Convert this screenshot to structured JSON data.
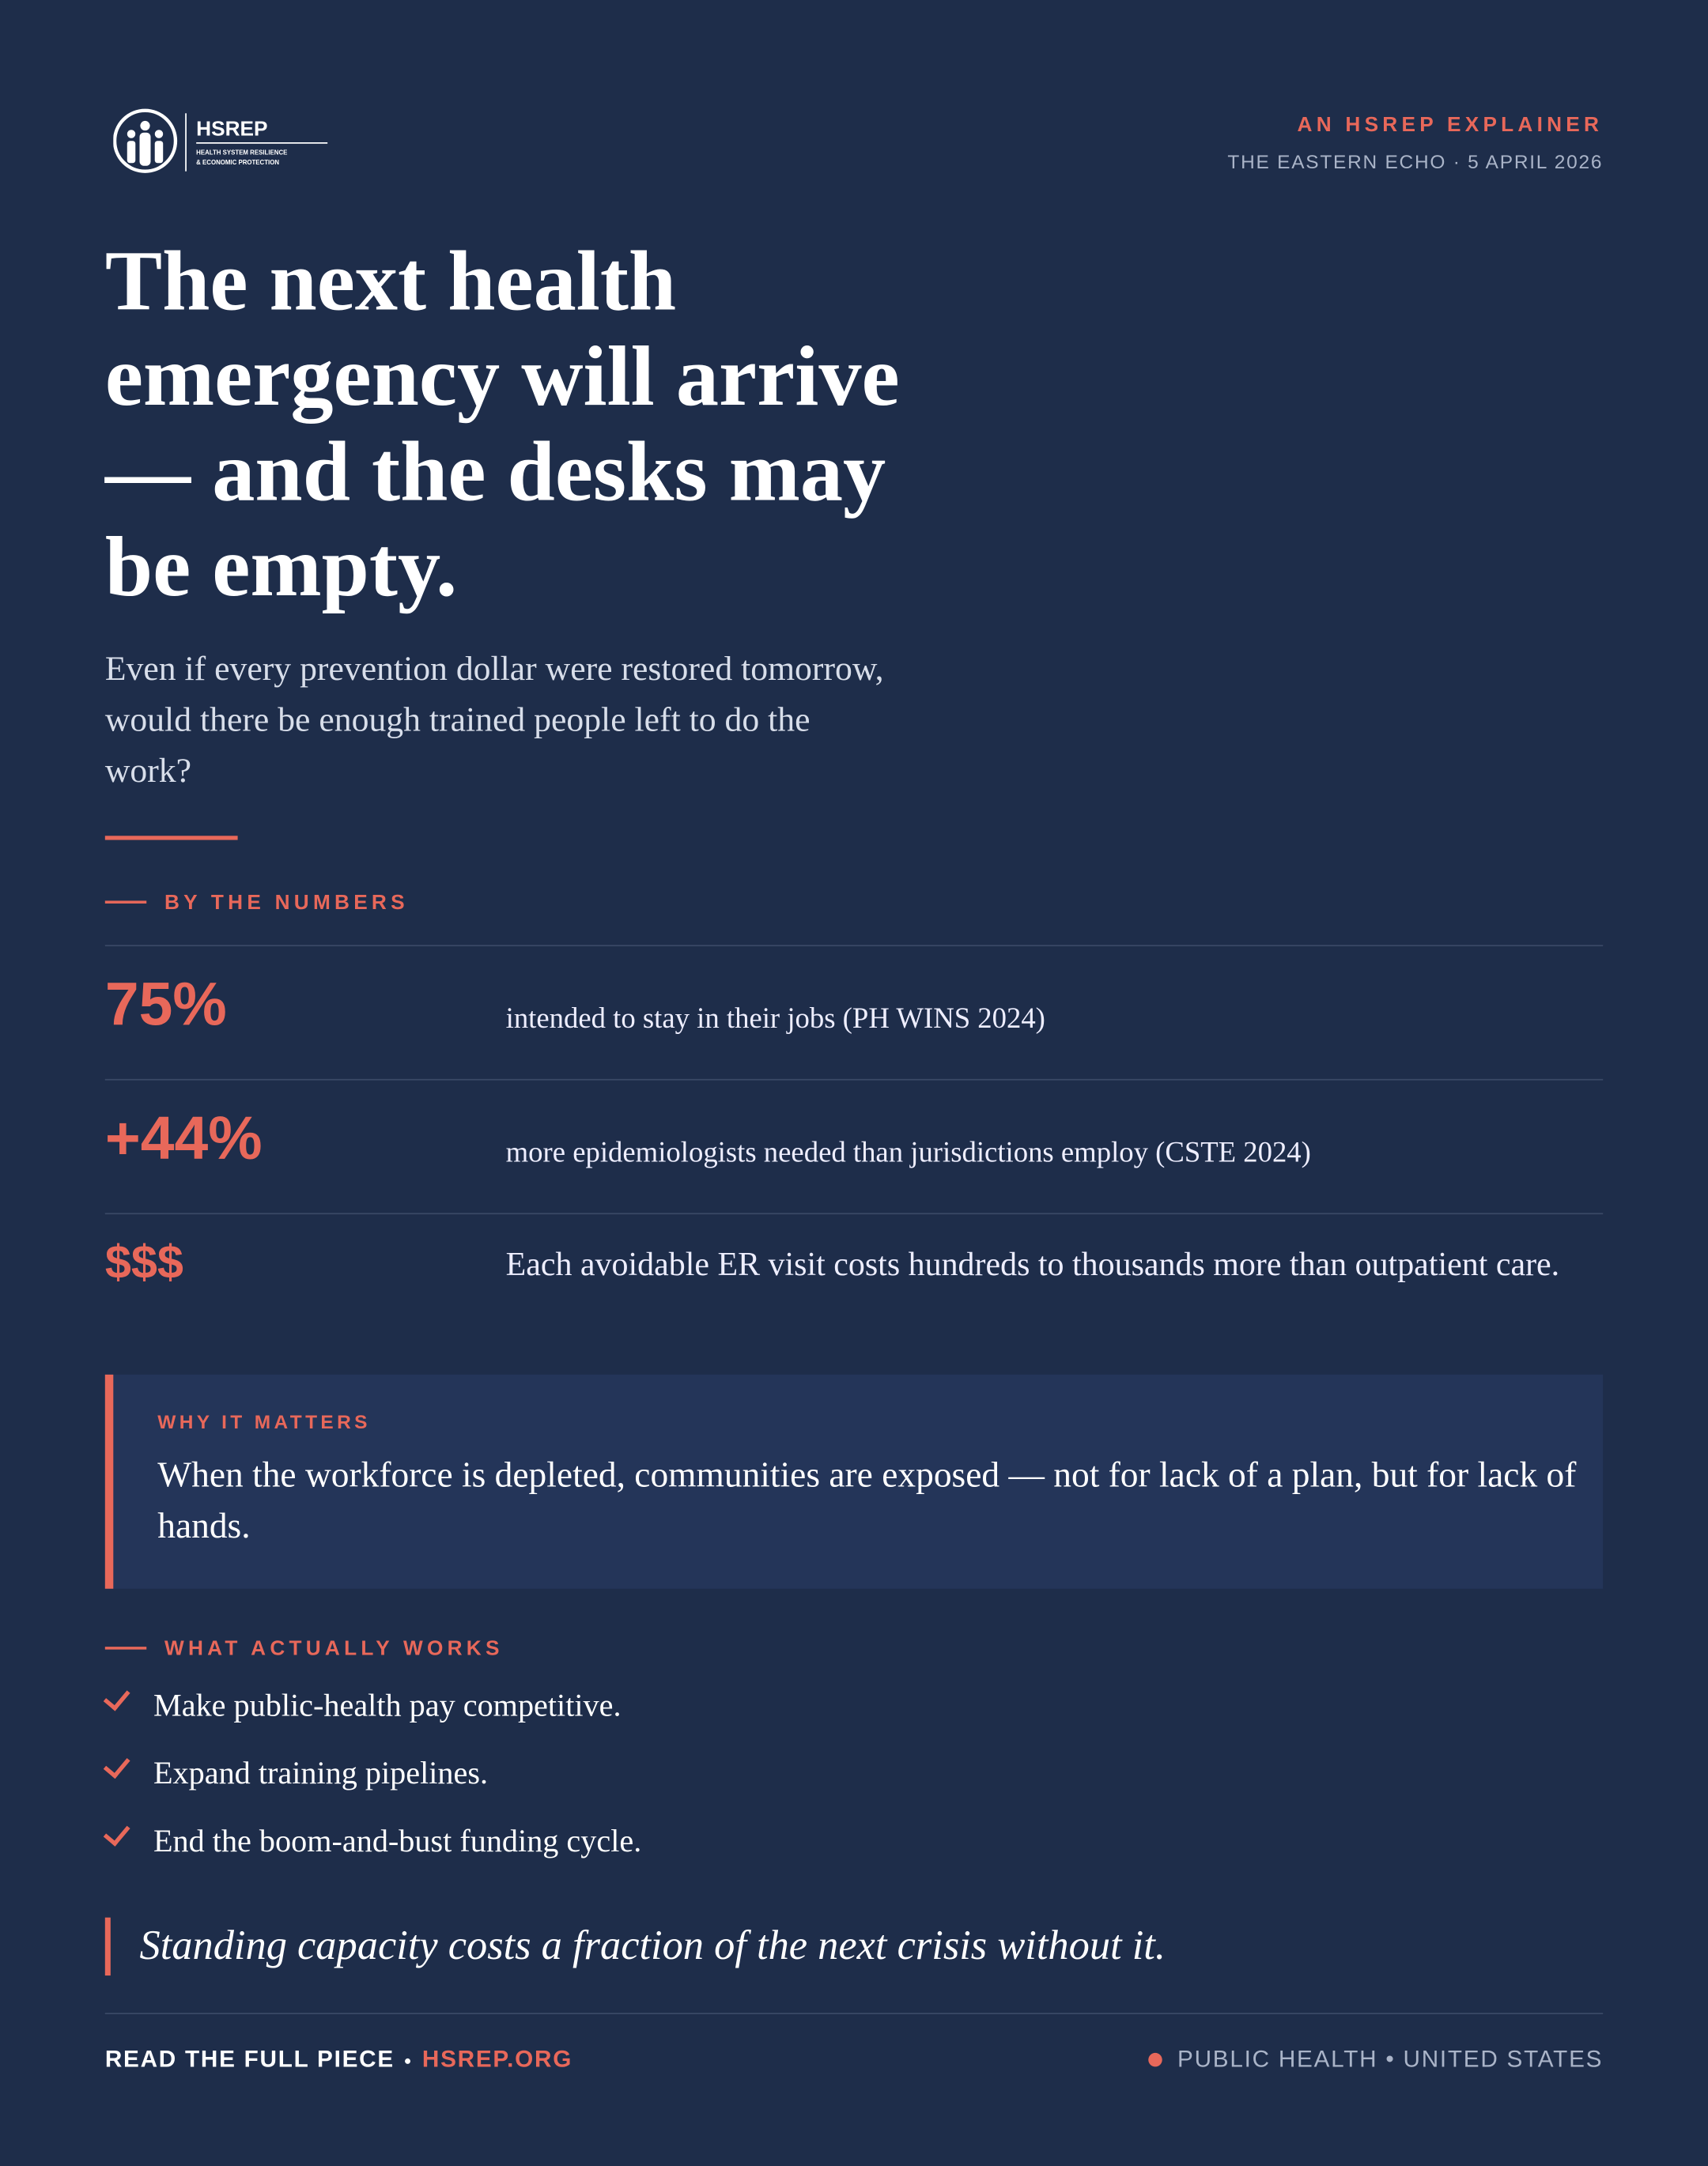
{
  "header": {
    "logo_name": "HSREP",
    "logo_tagline": [
      "HEALTH SYSTEM RESILIENCE",
      "& ECONOMIC PROTECTION"
    ],
    "kicker": "AN HSREP EXPLAINER",
    "byline": "THE EASTERN ECHO · 5 APRIL 2026"
  },
  "title": "The next health emergency will arrive — and the desks may be empty.",
  "subtitle": "Even if every prevention dollar were restored tomorrow, would there be enough trained people left to do the work?",
  "numbers": {
    "label": "BY THE NUMBERS",
    "items": [
      {
        "figure": "75%",
        "text": "intended to stay in their jobs (PH WINS 2024)"
      },
      {
        "figure": "+44%",
        "text": "more epidemiologists needed than jurisdictions employ (CSTE 2024)"
      },
      {
        "figure": "$$$",
        "text": "Each avoidable ER visit costs hundreds to thousands more than outpatient care."
      }
    ]
  },
  "why": {
    "label": "WHY IT MATTERS",
    "text": "When the workforce is depleted, communities are exposed — not for lack of a plan, but for lack of hands."
  },
  "works": {
    "label": "WHAT ACTUALLY WORKS",
    "items": [
      "Make public-health pay competitive.",
      "Expand training pipelines.",
      "End the boom-and-bust funding cycle."
    ]
  },
  "quote": "Standing capacity costs a fraction of the next crisis without it.",
  "footer": {
    "cta": "READ THE FULL PIECE",
    "link": "HSREP.ORG",
    "tags": "PUBLIC HEALTH • UNITED STATES"
  }
}
